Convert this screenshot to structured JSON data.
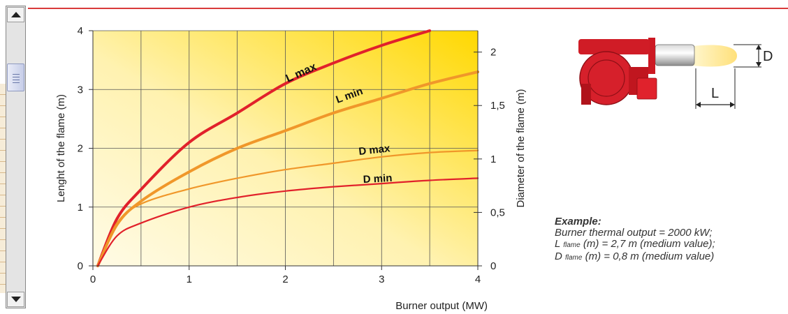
{
  "chart_data": {
    "type": "line",
    "x_axis": {
      "label": "Burner output (MW)",
      "range": [
        0,
        4
      ],
      "ticks": [
        "0",
        "1",
        "2",
        "3",
        "4"
      ]
    },
    "y_left_axis": {
      "label": "Lenght of the flame (m)",
      "range": [
        0,
        4
      ],
      "ticks": [
        "0",
        "1",
        "2",
        "3",
        "4"
      ]
    },
    "y_right_axis": {
      "label": "Diameter of the flame (m)",
      "range": [
        0,
        2.2
      ],
      "ticks": [
        "0",
        "0,5",
        "1",
        "1,5",
        "2"
      ]
    },
    "grid": true,
    "series": [
      {
        "name": "L max",
        "axis": "left",
        "color": "#e1212b",
        "points": [
          [
            0.05,
            0
          ],
          [
            0.25,
            0.8
          ],
          [
            0.5,
            1.3
          ],
          [
            1.0,
            2.1
          ],
          [
            1.5,
            2.6
          ],
          [
            2.0,
            3.1
          ],
          [
            2.5,
            3.45
          ],
          [
            3.0,
            3.75
          ],
          [
            3.5,
            4.0
          ]
        ]
      },
      {
        "name": "L min",
        "axis": "left",
        "color": "#f0972a",
        "points": [
          [
            0.05,
            0
          ],
          [
            0.25,
            0.7
          ],
          [
            0.5,
            1.1
          ],
          [
            1.0,
            1.6
          ],
          [
            1.5,
            2.0
          ],
          [
            2.0,
            2.3
          ],
          [
            2.5,
            2.6
          ],
          [
            3.0,
            2.85
          ],
          [
            3.5,
            3.1
          ],
          [
            4.0,
            3.3
          ]
        ]
      },
      {
        "name": "D max",
        "axis": "right",
        "color": "#f0972a",
        "points": [
          [
            0.05,
            0
          ],
          [
            0.25,
            0.4
          ],
          [
            0.5,
            0.58
          ],
          [
            1.0,
            0.72
          ],
          [
            1.5,
            0.82
          ],
          [
            2.0,
            0.9
          ],
          [
            2.5,
            0.96
          ],
          [
            3.0,
            1.02
          ],
          [
            3.5,
            1.06
          ],
          [
            4.0,
            1.08
          ]
        ]
      },
      {
        "name": "D min",
        "axis": "right",
        "color": "#e1212b",
        "points": [
          [
            0.05,
            0
          ],
          [
            0.25,
            0.28
          ],
          [
            0.5,
            0.4
          ],
          [
            1.0,
            0.55
          ],
          [
            1.5,
            0.64
          ],
          [
            2.0,
            0.7
          ],
          [
            2.5,
            0.74
          ],
          [
            3.0,
            0.77
          ],
          [
            3.5,
            0.8
          ],
          [
            4.0,
            0.82
          ]
        ]
      }
    ]
  },
  "curve_labels": {
    "lmax": "L max",
    "lmin": "L min",
    "dmax": "D max",
    "dmin": "D min"
  },
  "diagram": {
    "d_label": "D",
    "l_label": "L"
  },
  "example": {
    "title": "Example:",
    "line1": "Burner thermal output = 2000 kW;",
    "line2_a": "L ",
    "line2_sub": "flame",
    "line2_b": " (m) = 2,7 m (medium value);",
    "line3_a": "D ",
    "line3_sub": "flame",
    "line3_b": " (m) = 0,8 m (medium value)"
  },
  "colors": {
    "red": "#e1212b",
    "orange": "#f0972a",
    "grid": "#555555"
  },
  "icons": {
    "scroll_up": "triangle-up-icon",
    "scroll_down": "triangle-down-icon"
  }
}
